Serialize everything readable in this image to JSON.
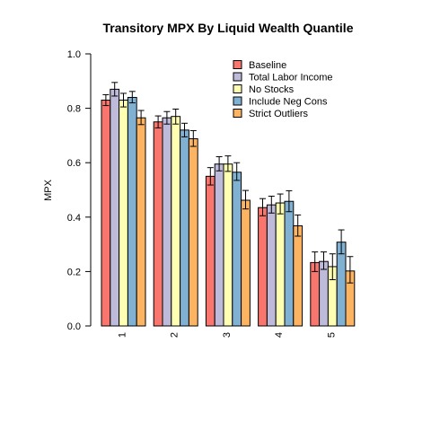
{
  "chart_data": {
    "type": "bar",
    "title": "Transitory MPX By Liquid Wealth Quantile",
    "xlabel": "",
    "ylabel": "MPX",
    "ylim": [
      0,
      1
    ],
    "yticks": [
      "0.0",
      "0.2",
      "0.4",
      "0.6",
      "0.8",
      "1.0"
    ],
    "grid": false,
    "legend_position": "top-right",
    "categories": [
      "1",
      "2",
      "3",
      "4",
      "5"
    ],
    "series": [
      {
        "name": "Baseline",
        "color": "#F8766D",
        "values": [
          0.83,
          0.75,
          0.55,
          0.435,
          0.233
        ],
        "error_low": [
          0.81,
          0.728,
          0.518,
          0.405,
          0.2
        ],
        "error_high": [
          0.85,
          0.772,
          0.582,
          0.468,
          0.272
        ]
      },
      {
        "name": "Total Labor Income",
        "color": "#BEBADA",
        "values": [
          0.87,
          0.765,
          0.595,
          0.445,
          0.237
        ],
        "error_low": [
          0.845,
          0.742,
          0.57,
          0.415,
          0.208
        ],
        "error_high": [
          0.895,
          0.788,
          0.622,
          0.477,
          0.272
        ]
      },
      {
        "name": "No Stocks",
        "color": "#FFFFB3",
        "values": [
          0.83,
          0.77,
          0.595,
          0.452,
          0.218
        ],
        "error_low": [
          0.805,
          0.742,
          0.568,
          0.412,
          0.17
        ],
        "error_high": [
          0.855,
          0.797,
          0.625,
          0.485,
          0.265
        ]
      },
      {
        "name": "Include Neg Cons",
        "color": "#80B1D3",
        "values": [
          0.84,
          0.72,
          0.565,
          0.458,
          0.308
        ],
        "error_low": [
          0.82,
          0.695,
          0.535,
          0.42,
          0.265
        ],
        "error_high": [
          0.862,
          0.745,
          0.6,
          0.497,
          0.353
        ]
      },
      {
        "name": "Strict Outliers",
        "color": "#FDB462",
        "values": [
          0.765,
          0.688,
          0.462,
          0.368,
          0.202
        ],
        "error_low": [
          0.74,
          0.66,
          0.43,
          0.33,
          0.158
        ],
        "error_high": [
          0.792,
          0.718,
          0.498,
          0.408,
          0.255
        ]
      }
    ]
  }
}
